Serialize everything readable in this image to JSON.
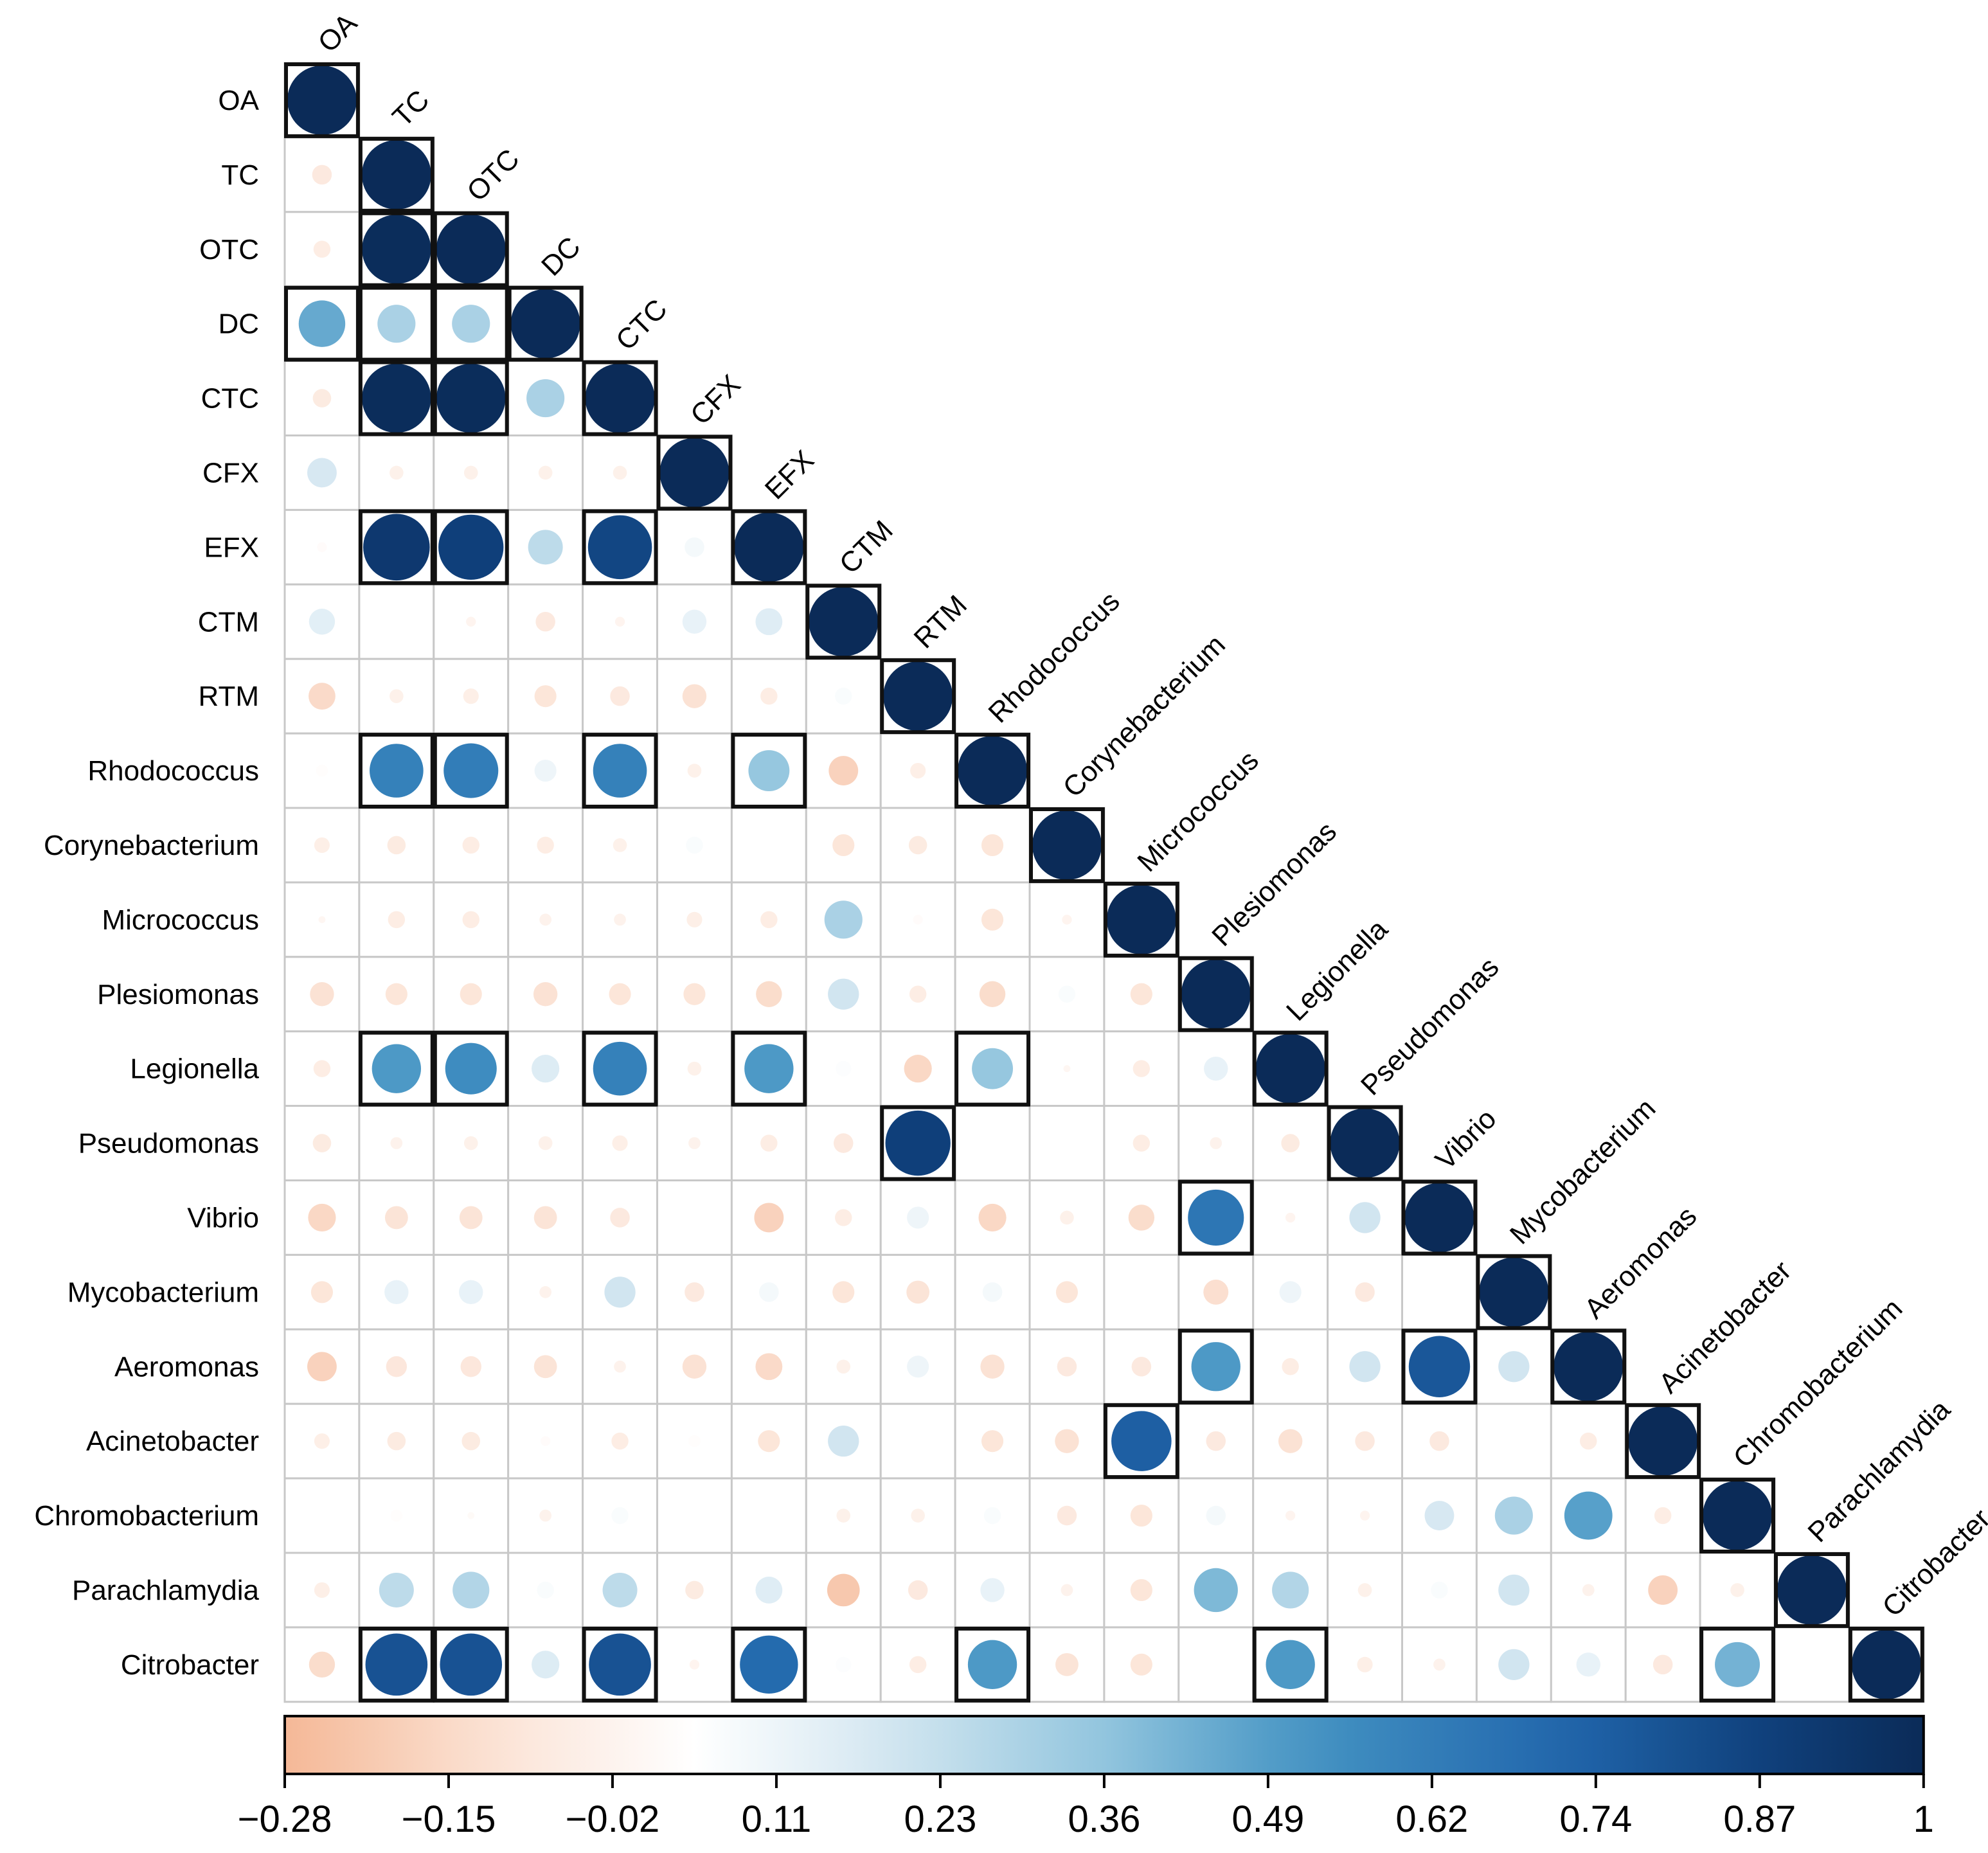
{
  "chart_data": {
    "type": "heatmap",
    "variables": [
      "OA",
      "TC",
      "OTC",
      "DC",
      "CTC",
      "CFX",
      "EFX",
      "CTM",
      "RTM",
      "Rhodococcus",
      "Corynebacterium",
      "Micrococcus",
      "Plesiomonas",
      "Legionella",
      "Pseudomonas",
      "Vibrio",
      "Mycobacterium",
      "Aeromonas",
      "Acinetobacter",
      "Chromobacterium",
      "Parachlamydia",
      "Citrobacter"
    ],
    "matrix_layout": "lower-triangle with diagonal",
    "values": [
      [
        1
      ],
      [
        -0.08,
        1
      ],
      [
        -0.06,
        0.99,
        1
      ],
      [
        0.45,
        0.3,
        0.3,
        1
      ],
      [
        -0.07,
        0.99,
        0.99,
        0.3,
        1
      ],
      [
        0.18,
        -0.04,
        -0.04,
        -0.04,
        -0.04,
        1
      ],
      [
        0.02,
        0.92,
        0.88,
        0.25,
        0.85,
        0.08,
        1
      ],
      [
        0.14,
        0.0,
        -0.02,
        -0.08,
        -0.02,
        0.12,
        0.15,
        1
      ],
      [
        -0.15,
        -0.04,
        -0.05,
        -0.1,
        -0.08,
        -0.12,
        -0.06,
        0.06,
        1
      ],
      [
        0.03,
        0.6,
        0.62,
        0.1,
        0.6,
        -0.04,
        0.35,
        -0.18,
        -0.05,
        1
      ],
      [
        -0.05,
        -0.07,
        -0.06,
        -0.06,
        -0.04,
        0.06,
        0,
        -0.1,
        -0.07,
        -0.1,
        1
      ],
      [
        -0.01,
        -0.06,
        -0.06,
        -0.03,
        -0.03,
        -0.05,
        -0.06,
        0.3,
        0.02,
        -0.1,
        -0.02,
        1
      ],
      [
        -0.12,
        -0.1,
        -0.1,
        -0.12,
        -0.1,
        -0.1,
        -0.14,
        0.2,
        -0.06,
        -0.14,
        0.06,
        -0.1,
        1
      ],
      [
        -0.06,
        0.5,
        0.55,
        0.16,
        0.6,
        -0.04,
        0.5,
        0.05,
        -0.16,
        0.35,
        -0.01,
        -0.06,
        0.12,
        1
      ],
      [
        -0.07,
        -0.03,
        -0.04,
        -0.04,
        -0.05,
        -0.03,
        -0.06,
        -0.08,
        0.88,
        0,
        0,
        -0.06,
        -0.03,
        -0.07,
        1
      ],
      [
        -0.16,
        -0.11,
        -0.11,
        -0.11,
        -0.08,
        0,
        -0.18,
        -0.06,
        0.1,
        -0.16,
        -0.04,
        -0.14,
        0.65,
        -0.02,
        0.2,
        1
      ],
      [
        -0.1,
        0.12,
        0.12,
        -0.03,
        0.2,
        -0.08,
        0.08,
        -0.1,
        -0.11,
        0.08,
        -0.1,
        0,
        -0.13,
        0.1,
        -0.08,
        0.04,
        1
      ],
      [
        -0.18,
        -0.09,
        -0.09,
        -0.11,
        -0.03,
        -0.12,
        -0.15,
        -0.04,
        0.1,
        -0.12,
        -0.08,
        -0.08,
        0.5,
        -0.06,
        0.2,
        0.78,
        0.2,
        1
      ],
      [
        -0.05,
        -0.07,
        -0.07,
        0.02,
        -0.06,
        0.03,
        -0.1,
        0.2,
        0,
        -0.1,
        -0.12,
        0.75,
        -0.08,
        -0.12,
        -0.08,
        -0.08,
        0,
        -0.06,
        1
      ],
      [
        0,
        0.03,
        0.01,
        -0.03,
        0.06,
        0.04,
        0,
        -0.04,
        -0.04,
        0.06,
        -0.08,
        -0.1,
        0.08,
        -0.02,
        -0.02,
        0.18,
        0.3,
        0.48,
        -0.06,
        1
      ],
      [
        -0.05,
        0.25,
        0.28,
        0.06,
        0.25,
        -0.07,
        0.15,
        -0.22,
        -0.08,
        0.12,
        -0.03,
        -0.1,
        0.4,
        0.28,
        -0.04,
        0.06,
        0.2,
        -0.03,
        -0.18,
        -0.04,
        1
      ],
      [
        -0.14,
        0.8,
        0.8,
        0.16,
        0.8,
        -0.02,
        0.7,
        0.05,
        -0.06,
        0.5,
        -0.11,
        -0.1,
        0,
        0.5,
        -0.05,
        -0.03,
        0.2,
        0.12,
        -0.08,
        0.42,
        0.04,
        1
      ]
    ],
    "highlighted_cells": [
      [
        0,
        0
      ],
      [
        1,
        1
      ],
      [
        2,
        1
      ],
      [
        2,
        2
      ],
      [
        3,
        0
      ],
      [
        3,
        1
      ],
      [
        3,
        2
      ],
      [
        3,
        3
      ],
      [
        4,
        1
      ],
      [
        4,
        2
      ],
      [
        4,
        4
      ],
      [
        5,
        5
      ],
      [
        6,
        1
      ],
      [
        6,
        2
      ],
      [
        6,
        4
      ],
      [
        6,
        6
      ],
      [
        7,
        7
      ],
      [
        8,
        8
      ],
      [
        9,
        1
      ],
      [
        9,
        2
      ],
      [
        9,
        4
      ],
      [
        9,
        6
      ],
      [
        9,
        9
      ],
      [
        10,
        10
      ],
      [
        11,
        11
      ],
      [
        12,
        12
      ],
      [
        13,
        1
      ],
      [
        13,
        2
      ],
      [
        13,
        4
      ],
      [
        13,
        6
      ],
      [
        13,
        9
      ],
      [
        13,
        13
      ],
      [
        14,
        8
      ],
      [
        14,
        14
      ],
      [
        15,
        12
      ],
      [
        15,
        15
      ],
      [
        16,
        16
      ],
      [
        17,
        12
      ],
      [
        17,
        15
      ],
      [
        17,
        17
      ],
      [
        18,
        11
      ],
      [
        18,
        18
      ],
      [
        19,
        19
      ],
      [
        20,
        20
      ],
      [
        21,
        1
      ],
      [
        21,
        2
      ],
      [
        21,
        4
      ],
      [
        21,
        6
      ],
      [
        21,
        9
      ],
      [
        21,
        13
      ],
      [
        21,
        19
      ],
      [
        21,
        21
      ]
    ],
    "color_scale": {
      "min": -0.28,
      "max": 1,
      "stops": [
        [
          -0.28,
          "#f5b897"
        ],
        [
          -0.12,
          "#fbe2d4"
        ],
        [
          0.04,
          "#ffffff"
        ],
        [
          0.2,
          "#d1e5f0"
        ],
        [
          0.36,
          "#92c5de"
        ],
        [
          0.52,
          "#4393c3"
        ],
        [
          0.72,
          "#2166ac"
        ],
        [
          0.88,
          "#0f3f7a"
        ],
        [
          1,
          "#0b2b58"
        ]
      ]
    },
    "legend": {
      "type": "colorbar",
      "placement": "bottom",
      "tick_labels": [
        "−0.28",
        "−0.15",
        "−0.02",
        "0.11",
        "0.23",
        "0.36",
        "0.49",
        "0.62",
        "0.74",
        "0.87",
        "1"
      ]
    }
  }
}
